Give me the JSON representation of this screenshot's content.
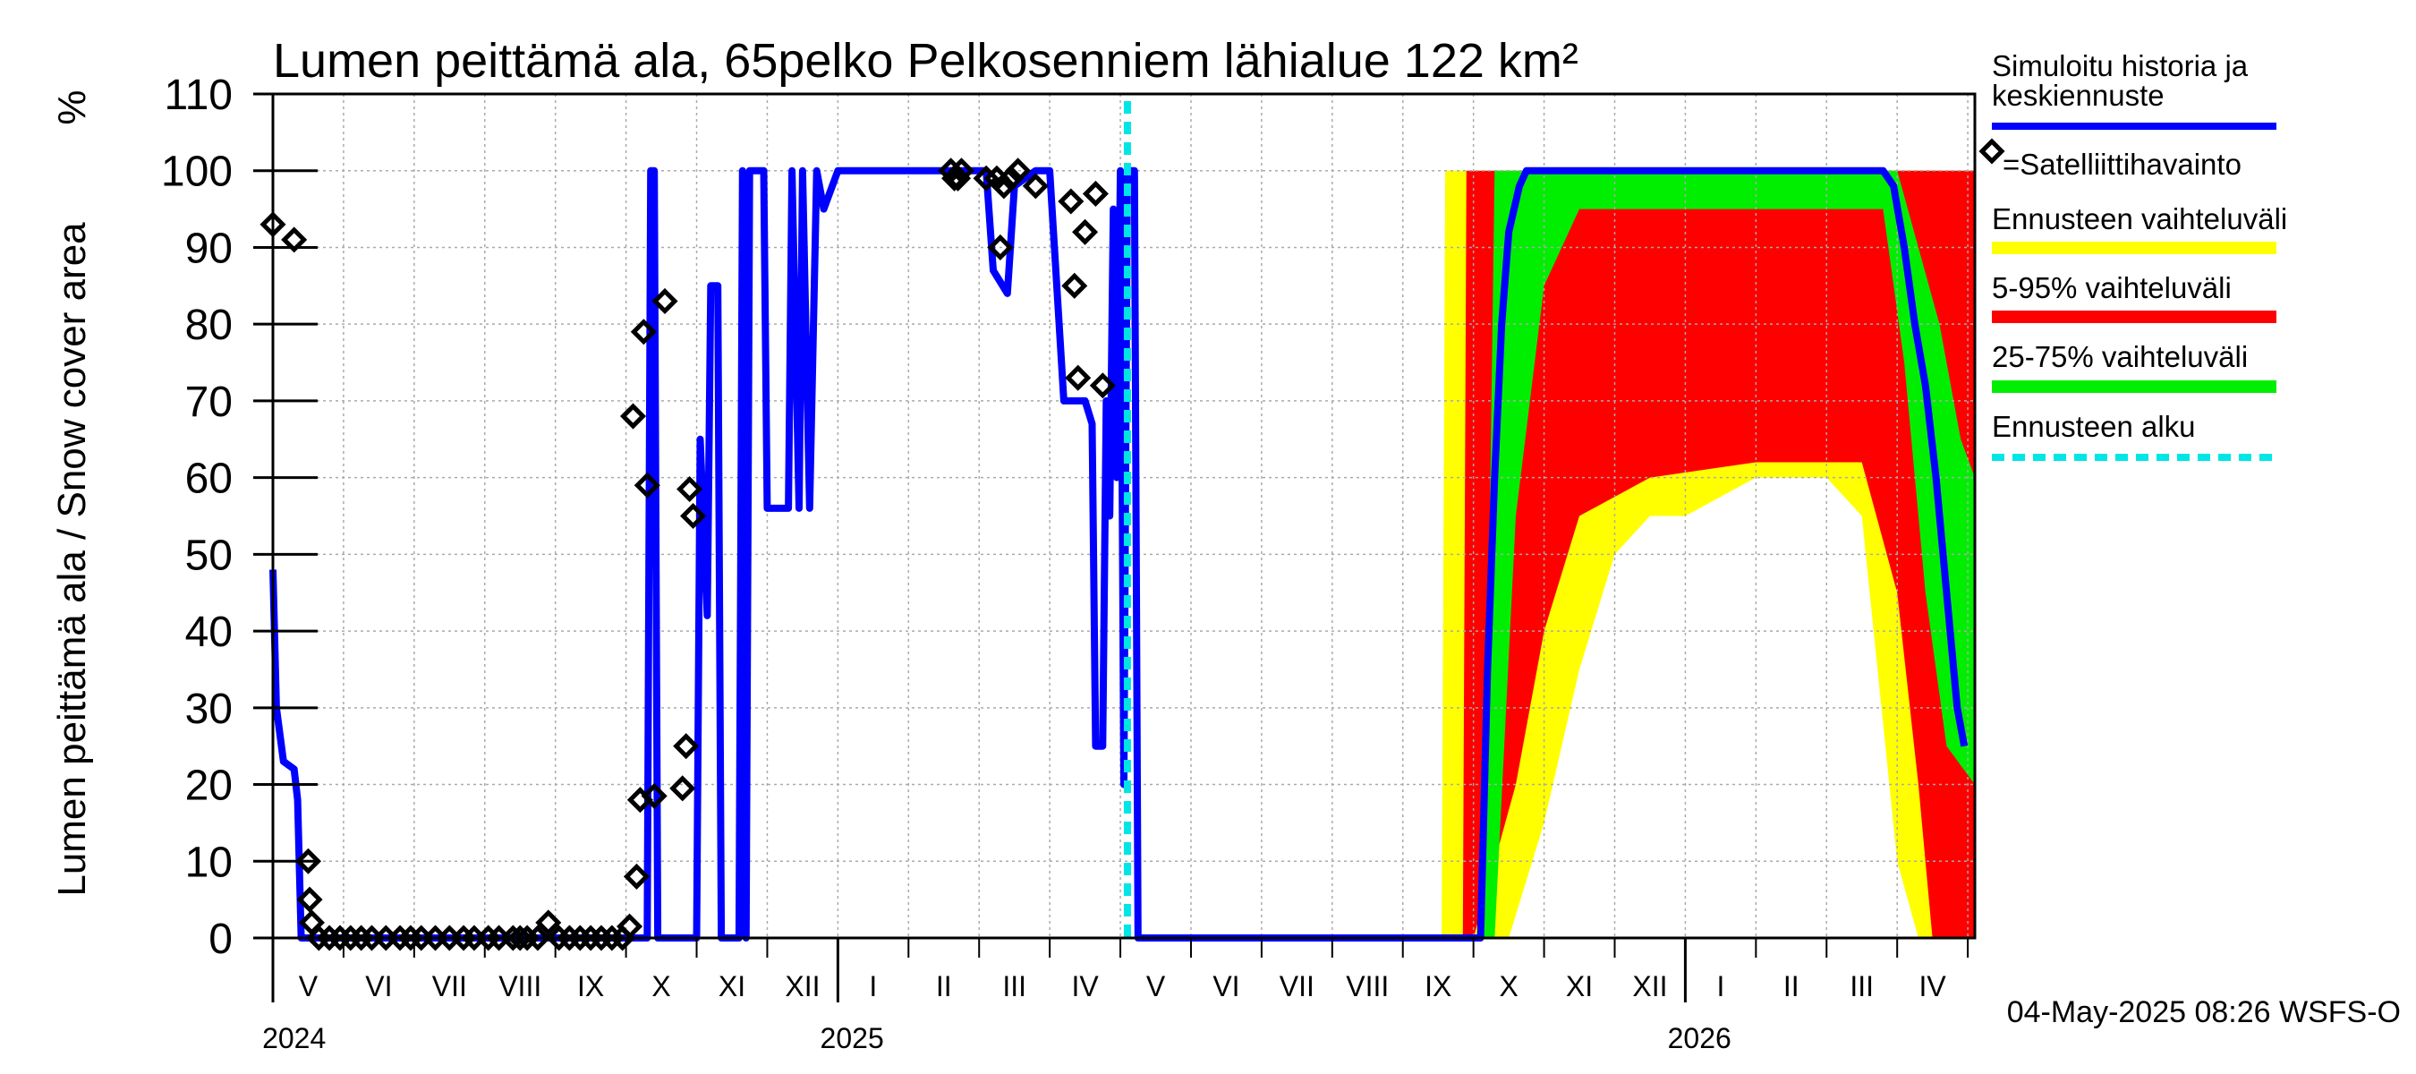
{
  "chart_data": {
    "type": "line",
    "title": "Lumen peittämä ala, 65pelko Pelkosenniem lähialue 122 km²",
    "ylabel": "Lumen peittämä ala / Snow cover area",
    "yunit": "%",
    "ylim": [
      0,
      110
    ],
    "yticks": [
      0,
      10,
      20,
      30,
      40,
      50,
      60,
      70,
      80,
      90,
      100,
      110
    ],
    "x_range_months": [
      0,
      24.1
    ],
    "forecast_start_month": 12.1,
    "footer": "04-May-2025 08:26 WSFS-O",
    "month_labels": [
      {
        "label": "V",
        "m": 0.5
      },
      {
        "label": "VI",
        "m": 1.5
      },
      {
        "label": "VII",
        "m": 2.5
      },
      {
        "label": "VIII",
        "m": 3.5
      },
      {
        "label": "IX",
        "m": 4.5
      },
      {
        "label": "X",
        "m": 5.5
      },
      {
        "label": "XI",
        "m": 6.5
      },
      {
        "label": "XII",
        "m": 7.5
      },
      {
        "label": "I",
        "m": 8.5
      },
      {
        "label": "II",
        "m": 9.5
      },
      {
        "label": "III",
        "m": 10.5
      },
      {
        "label": "IV",
        "m": 11.5
      },
      {
        "label": "V",
        "m": 12.5
      },
      {
        "label": "VI",
        "m": 13.5
      },
      {
        "label": "VII",
        "m": 14.5
      },
      {
        "label": "VIII",
        "m": 15.5
      },
      {
        "label": "IX",
        "m": 16.5
      },
      {
        "label": "X",
        "m": 17.5
      },
      {
        "label": "XI",
        "m": 18.5
      },
      {
        "label": "XII",
        "m": 19.5
      },
      {
        "label": "I",
        "m": 20.5
      },
      {
        "label": "II",
        "m": 21.5
      },
      {
        "label": "III",
        "m": 22.5
      },
      {
        "label": "IV",
        "m": 23.5
      }
    ],
    "year_labels": [
      {
        "label": "2024",
        "m": 0.3
      },
      {
        "label": "2025",
        "m": 8.2
      },
      {
        "label": "2026",
        "m": 20.2
      }
    ],
    "year_boundaries": [
      8,
      20
    ],
    "legend": {
      "sim": "Simuloitu historia ja keskiennuste",
      "sat": "=Satelliittihavainto",
      "range": "Ennusteen vaihteluväli",
      "p595": "5-95% vaihteluväli",
      "p2575": "25-75% vaihteluväli",
      "start": "Ennusteen alku"
    },
    "colors": {
      "sim": "#0000ff",
      "range": "#ffff00",
      "p595": "#ff0000",
      "p2575": "#00ee00",
      "start": "#00e5e5",
      "grid": "#aaaaaa"
    },
    "series": [
      {
        "name": "Simuloitu historia ja keskiennuste",
        "points": [
          [
            0.0,
            48
          ],
          [
            0.05,
            30
          ],
          [
            0.15,
            23
          ],
          [
            0.3,
            22
          ],
          [
            0.35,
            18
          ],
          [
            0.4,
            0
          ],
          [
            5.3,
            0
          ],
          [
            5.35,
            100
          ],
          [
            5.4,
            100
          ],
          [
            5.45,
            0
          ],
          [
            6.0,
            0
          ],
          [
            6.05,
            65
          ],
          [
            6.15,
            42
          ],
          [
            6.2,
            85
          ],
          [
            6.3,
            85
          ],
          [
            6.35,
            0
          ],
          [
            6.6,
            0
          ],
          [
            6.65,
            100
          ],
          [
            6.7,
            0
          ],
          [
            6.75,
            100
          ],
          [
            6.95,
            100
          ],
          [
            7.0,
            56
          ],
          [
            7.3,
            56
          ],
          [
            7.35,
            100
          ],
          [
            7.45,
            56
          ],
          [
            7.5,
            100
          ],
          [
            7.6,
            56
          ],
          [
            7.7,
            100
          ],
          [
            7.8,
            95
          ],
          [
            8.0,
            100
          ],
          [
            10.1,
            100
          ],
          [
            10.2,
            87
          ],
          [
            10.4,
            84
          ],
          [
            10.5,
            98
          ],
          [
            10.8,
            100
          ],
          [
            11.0,
            100
          ],
          [
            11.2,
            70
          ],
          [
            11.5,
            70
          ],
          [
            11.6,
            67
          ],
          [
            11.65,
            25
          ],
          [
            11.75,
            25
          ],
          [
            11.8,
            70
          ],
          [
            11.85,
            55
          ],
          [
            11.9,
            95
          ],
          [
            11.95,
            60
          ],
          [
            12.0,
            100
          ],
          [
            12.05,
            20
          ],
          [
            12.1,
            100
          ],
          [
            12.2,
            100
          ],
          [
            12.25,
            0
          ],
          [
            16.8,
            0
          ],
          [
            16.9,
            0
          ],
          [
            17.1,
            0
          ],
          [
            17.2,
            35
          ],
          [
            17.3,
            60
          ],
          [
            17.4,
            80
          ],
          [
            17.5,
            92
          ],
          [
            17.65,
            98
          ],
          [
            17.75,
            100
          ],
          [
            17.8,
            100
          ],
          [
            18.0,
            100
          ],
          [
            22.8,
            100
          ],
          [
            22.95,
            98
          ],
          [
            23.1,
            90
          ],
          [
            23.25,
            80
          ],
          [
            23.4,
            72
          ],
          [
            23.55,
            60
          ],
          [
            23.7,
            45
          ],
          [
            23.85,
            30
          ],
          [
            23.95,
            25
          ]
        ]
      }
    ],
    "satellite_observations": [
      [
        0.0,
        93
      ],
      [
        0.3,
        91
      ],
      [
        0.5,
        10
      ],
      [
        0.52,
        5
      ],
      [
        0.55,
        2
      ],
      [
        0.65,
        0
      ],
      [
        0.8,
        0
      ],
      [
        0.95,
        0
      ],
      [
        1.1,
        0
      ],
      [
        1.25,
        0
      ],
      [
        1.4,
        0
      ],
      [
        1.6,
        0
      ],
      [
        1.8,
        0
      ],
      [
        1.95,
        0
      ],
      [
        2.1,
        0
      ],
      [
        2.3,
        0
      ],
      [
        2.5,
        0
      ],
      [
        2.7,
        0
      ],
      [
        2.85,
        0
      ],
      [
        3.05,
        0
      ],
      [
        3.2,
        0
      ],
      [
        3.4,
        0
      ],
      [
        3.5,
        0
      ],
      [
        3.6,
        0
      ],
      [
        3.75,
        0
      ],
      [
        3.9,
        2
      ],
      [
        4.05,
        0
      ],
      [
        4.2,
        0
      ],
      [
        4.35,
        0
      ],
      [
        4.5,
        0
      ],
      [
        4.65,
        0
      ],
      [
        4.8,
        0
      ],
      [
        4.95,
        0
      ],
      [
        5.05,
        1.5
      ],
      [
        5.1,
        68
      ],
      [
        5.15,
        8
      ],
      [
        5.2,
        18
      ],
      [
        5.25,
        79
      ],
      [
        5.3,
        59
      ],
      [
        5.4,
        18.5
      ],
      [
        5.55,
        83
      ],
      [
        5.8,
        19.5
      ],
      [
        5.85,
        25
      ],
      [
        5.9,
        58.5
      ],
      [
        5.95,
        55
      ],
      [
        9.6,
        100
      ],
      [
        9.65,
        99
      ],
      [
        9.7,
        99
      ],
      [
        9.75,
        100
      ],
      [
        10.1,
        99
      ],
      [
        10.25,
        99
      ],
      [
        10.3,
        90
      ],
      [
        10.35,
        98
      ],
      [
        10.45,
        99
      ],
      [
        10.55,
        100
      ],
      [
        10.8,
        98
      ],
      [
        11.3,
        96
      ],
      [
        11.35,
        85
      ],
      [
        11.4,
        73
      ],
      [
        11.5,
        92
      ],
      [
        11.65,
        97
      ],
      [
        11.75,
        72
      ]
    ],
    "forecast_bands": {
      "range_min": [
        [
          12.1,
          0
        ],
        [
          16.5,
          0
        ],
        [
          17.5,
          0
        ],
        [
          18.0,
          15
        ],
        [
          18.5,
          35
        ],
        [
          19.0,
          50
        ],
        [
          19.5,
          55
        ],
        [
          20.0,
          55
        ],
        [
          21.0,
          60
        ],
        [
          22.0,
          60
        ],
        [
          22.5,
          55
        ],
        [
          23.0,
          10
        ],
        [
          23.3,
          0
        ],
        [
          24.1,
          0
        ]
      ],
      "range_max": [
        [
          12.1,
          0
        ],
        [
          16.55,
          0
        ],
        [
          16.6,
          100
        ],
        [
          24.1,
          100
        ]
      ],
      "p595_min": [
        [
          12.1,
          0
        ],
        [
          17.0,
          0
        ],
        [
          17.6,
          20
        ],
        [
          18.0,
          40
        ],
        [
          18.5,
          55
        ],
        [
          19.5,
          60
        ],
        [
          21.0,
          62
        ],
        [
          22.5,
          62
        ],
        [
          23.0,
          45
        ],
        [
          23.3,
          20
        ],
        [
          23.5,
          0
        ],
        [
          24.1,
          0
        ]
      ],
      "p595_max": [
        [
          12.1,
          0
        ],
        [
          16.85,
          0
        ],
        [
          16.9,
          100
        ],
        [
          24.1,
          100
        ]
      ],
      "p2575_min": [
        [
          12.1,
          0
        ],
        [
          17.3,
          0
        ],
        [
          17.6,
          55
        ],
        [
          18.0,
          85
        ],
        [
          18.5,
          95
        ],
        [
          22.8,
          95
        ],
        [
          23.1,
          75
        ],
        [
          23.4,
          45
        ],
        [
          23.7,
          25
        ],
        [
          24.1,
          20
        ]
      ],
      "p2575_max": [
        [
          12.1,
          0
        ],
        [
          17.15,
          0
        ],
        [
          17.3,
          100
        ],
        [
          23.0,
          100
        ],
        [
          23.3,
          90
        ],
        [
          23.6,
          80
        ],
        [
          23.9,
          65
        ],
        [
          24.1,
          60
        ]
      ]
    }
  }
}
